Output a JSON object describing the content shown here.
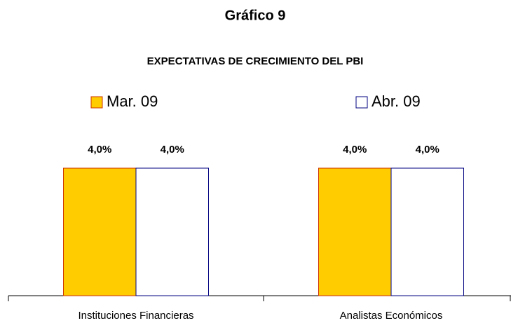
{
  "chart_data": {
    "type": "bar",
    "title": "Gráfico 9",
    "subtitle": "EXPECTATIVAS DE CRECIMIENTO DEL PBI",
    "categories": [
      "Instituciones Financieras",
      "Analistas Económicos"
    ],
    "series": [
      {
        "name": "Mar. 09",
        "color": "#ffcc00",
        "edge": "#cc3300",
        "values": [
          4.0,
          4.0
        ],
        "value_labels": [
          "4,0%",
          "4,0%"
        ]
      },
      {
        "name": "Abr. 09",
        "color": "#ffffff",
        "edge": "#000080",
        "values": [
          4.0,
          4.0
        ],
        "value_labels": [
          "4,0%",
          "4,0%"
        ]
      }
    ]
  }
}
